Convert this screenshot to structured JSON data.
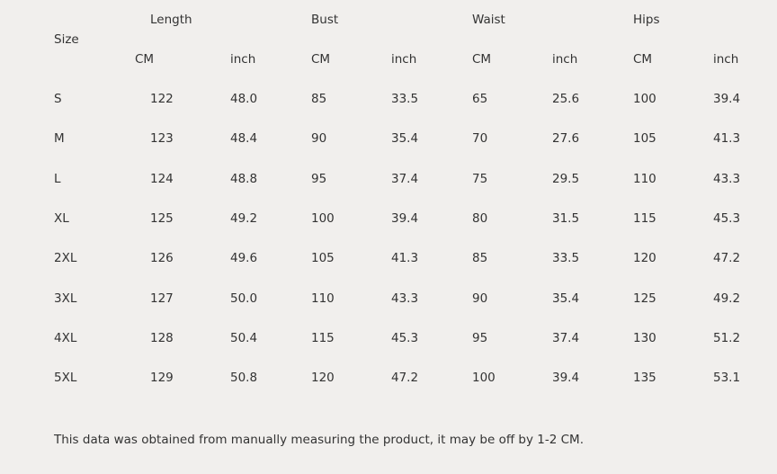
{
  "header": {
    "size_label": "Size",
    "groups": [
      "Length",
      "Bust",
      "Waist",
      "Hips"
    ],
    "units": [
      "CM",
      "inch",
      "CM",
      "inch",
      "CM",
      "inch",
      "CM",
      "inch"
    ]
  },
  "table": {
    "rows": [
      [
        "S",
        "122",
        "48.0",
        "85",
        "33.5",
        "65",
        "25.6",
        "100",
        "39.4"
      ],
      [
        "M",
        "123",
        "48.4",
        "90",
        "35.4",
        "70",
        "27.6",
        "105",
        "41.3"
      ],
      [
        "L",
        "124",
        "48.8",
        "95",
        "37.4",
        "75",
        "29.5",
        "110",
        "43.3"
      ],
      [
        "XL",
        "125",
        "49.2",
        "100",
        "39.4",
        "80",
        "31.5",
        "115",
        "45.3"
      ],
      [
        "2XL",
        "126",
        "49.6",
        "105",
        "41.3",
        "85",
        "33.5",
        "120",
        "47.2"
      ],
      [
        "3XL",
        "127",
        "50.0",
        "110",
        "43.3",
        "90",
        "35.4",
        "125",
        "49.2"
      ],
      [
        "4XL",
        "128",
        "50.4",
        "115",
        "45.3",
        "95",
        "37.4",
        "130",
        "51.2"
      ],
      [
        "5XL",
        "129",
        "50.8",
        "120",
        "47.2",
        "100",
        "39.4",
        "135",
        "53.1"
      ]
    ]
  },
  "footnote": "This data was obtained from manually measuring the product, it may be off by 1-2 CM."
}
